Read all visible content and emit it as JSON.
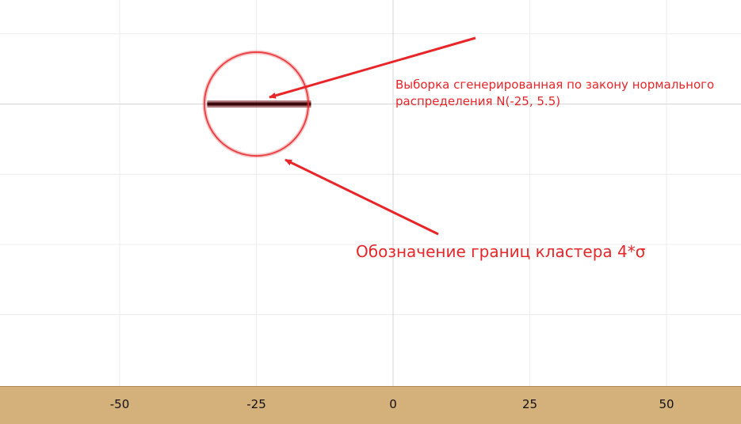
{
  "colors": {
    "background": "#ffffff",
    "grid": "#ececec",
    "axis": "#d4d4d4",
    "axis_band": "#d4b07a",
    "boundary_circle": "#e8262a",
    "sample_points": "#6b0d12",
    "annotation": "#e8262a"
  },
  "chart_data": {
    "type": "scatter",
    "title": "",
    "xlabel": "",
    "ylabel": "",
    "xlim": [
      -71,
      64
    ],
    "ylim": [
      -2.06,
      0.7
    ],
    "xticks": [
      -50,
      -25,
      0,
      25,
      50
    ],
    "xtick_labels": [
      "-50",
      "-25",
      "0",
      "25",
      "50"
    ],
    "yticks": [
      0.5,
      0,
      -0.5,
      -1,
      -1.5
    ],
    "grid": true,
    "series": [
      {
        "kind": "points",
        "distribution": "N(-25, 5.5)",
        "x_range": [
          -34,
          -15
        ],
        "y": 0,
        "color": "#6b0d12"
      },
      {
        "kind": "circle",
        "center": [
          -25,
          0
        ],
        "radius": 9.5,
        "color": "#e8262a"
      }
    ],
    "annotations": [
      {
        "id": "sample",
        "lines": [
          "Выборка сгенерированная по закону нормального",
          "распределения N(-25, 5.5)"
        ],
        "arrow_to": "points"
      },
      {
        "id": "boundary",
        "lines": [
          "Обозначение границ кластера 4*σ"
        ],
        "arrow_to": "circle"
      }
    ]
  }
}
